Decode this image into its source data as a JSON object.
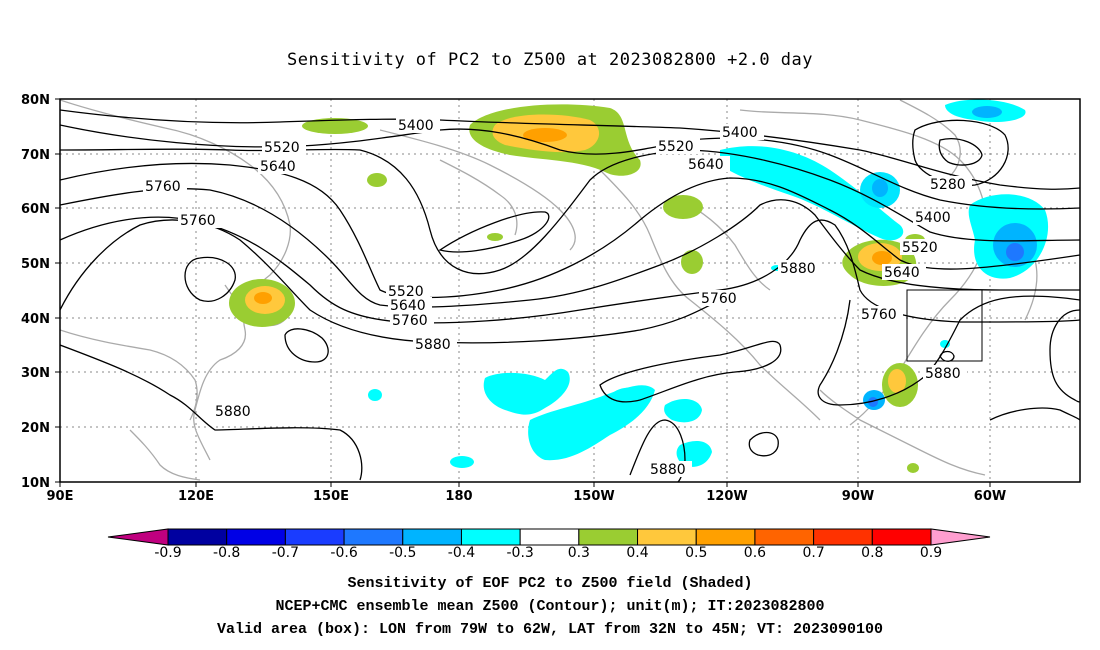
{
  "title": "Sensitivity of PC2 to Z500 at 2023082800 +2.0 day",
  "map": {
    "lat_labels": [
      "80N",
      "70N",
      "60N",
      "50N",
      "40N",
      "30N",
      "20N",
      "10N"
    ],
    "lon_labels": [
      "90E",
      "120E",
      "150E",
      "180",
      "150W",
      "120W",
      "90W",
      "60W"
    ],
    "contour_labels": [
      {
        "text": "5400"
      },
      {
        "text": "5400"
      },
      {
        "text": "5520"
      },
      {
        "text": "5520"
      },
      {
        "text": "5640"
      },
      {
        "text": "5640"
      },
      {
        "text": "5760"
      },
      {
        "text": "5760"
      },
      {
        "text": "5520"
      },
      {
        "text": "5640"
      },
      {
        "text": "5760"
      },
      {
        "text": "5880"
      },
      {
        "text": "5880"
      },
      {
        "text": "5880"
      },
      {
        "text": "5760"
      },
      {
        "text": "5760"
      },
      {
        "text": "5280"
      },
      {
        "text": "5400"
      },
      {
        "text": "5520"
      },
      {
        "text": "5640"
      },
      {
        "text": "5880"
      },
      {
        "text": "5880"
      }
    ],
    "valid_box": {
      "lon_range": "79W to 62W",
      "lat_range": "32N to 45N"
    }
  },
  "colorbar": {
    "labels": [
      "-0.9",
      "-0.8",
      "-0.7",
      "-0.6",
      "-0.5",
      "-0.4",
      "-0.3",
      "0.3",
      "0.4",
      "0.5",
      "0.6",
      "0.7",
      "0.8",
      "0.9"
    ],
    "colors": [
      "#0000a0",
      "#0000e6",
      "#1a3cff",
      "#1e78ff",
      "#00b4ff",
      "#00ffff",
      "#ffffff",
      "#9acd32",
      "#ffc83c",
      "#ffa000",
      "#ff6400",
      "#ff3200",
      "#ff0000"
    ],
    "left_triangle_color": "#c0007f",
    "right_triangle_color": "#ff9ecf"
  },
  "captions": {
    "line1": "Sensitivity of EOF PC2 to Z500 field (Shaded)",
    "line2": "NCEP+CMC ensemble mean Z500 (Contour); unit(m); IT:2023082800",
    "line3": "Valid area (box): LON from 79W to 62W, LAT from 32N to 45N; VT: 2023090100"
  }
}
